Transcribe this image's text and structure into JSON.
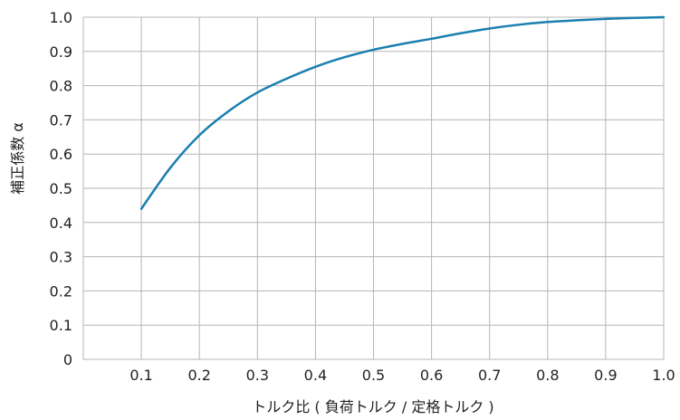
{
  "chart_data": {
    "type": "line",
    "title": "",
    "xlabel": "トルク比 ( 負荷トルク / 定格トルク )",
    "ylabel": "補正係数 α",
    "xlim": [
      0.0,
      1.0
    ],
    "ylim": [
      0.0,
      1.0
    ],
    "x_ticks": [
      "0.1",
      "0.2",
      "0.3",
      "0.4",
      "0.5",
      "0.6",
      "0.7",
      "0.8",
      "0.9",
      "1.0"
    ],
    "y_ticks": [
      "0",
      "0.1",
      "0.2",
      "0.3",
      "0.4",
      "0.5",
      "0.6",
      "0.7",
      "0.8",
      "0.9",
      "1.0"
    ],
    "grid": true,
    "series": [
      {
        "color": "#1a7fb0",
        "x": [
          0.1,
          0.15,
          0.2,
          0.25,
          0.3,
          0.35,
          0.4,
          0.45,
          0.5,
          0.55,
          0.6,
          0.65,
          0.7,
          0.75,
          0.8,
          0.85,
          0.9,
          0.95,
          1.0
        ],
        "y": [
          0.44,
          0.56,
          0.655,
          0.725,
          0.78,
          0.82,
          0.855,
          0.883,
          0.905,
          0.922,
          0.937,
          0.953,
          0.967,
          0.978,
          0.986,
          0.991,
          0.995,
          0.998,
          1.0
        ]
      }
    ]
  }
}
